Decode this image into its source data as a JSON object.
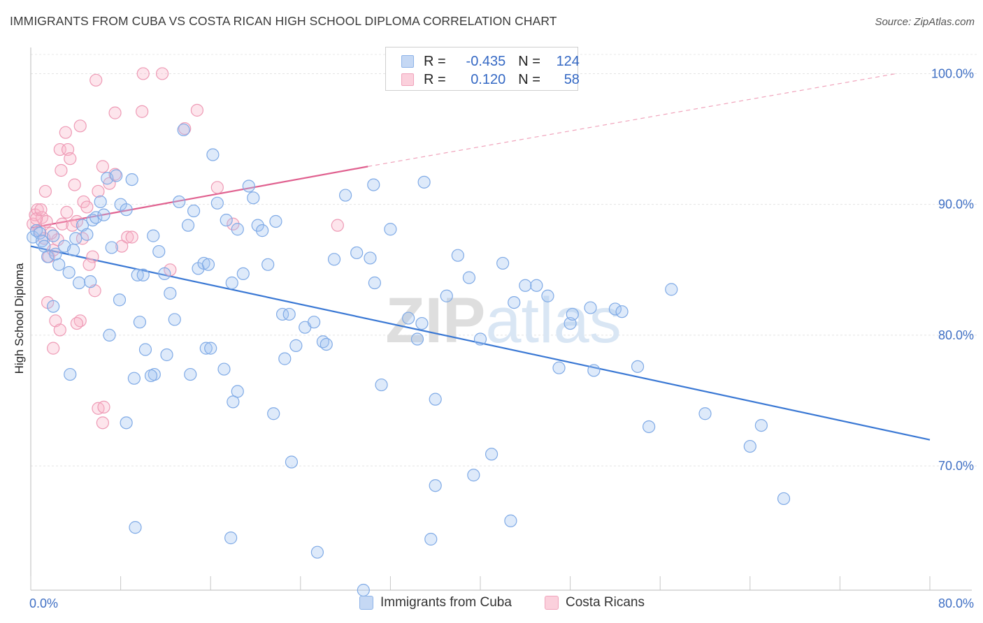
{
  "title": "IMMIGRANTS FROM CUBA VS COSTA RICAN HIGH SCHOOL DIPLOMA CORRELATION CHART",
  "source": "Source: ZipAtlas.com",
  "watermark": "ZIPatlas",
  "legend": {
    "rows": [
      {
        "r_label": "R =",
        "r_value": "-0.435",
        "n_label": "N =",
        "n_value": "124",
        "color": "#8db3e8",
        "fill": "#c5d8f4"
      },
      {
        "r_label": "R =",
        "r_value": "0.120",
        "n_label": "N =",
        "n_value": "58",
        "color": "#f0a3bb",
        "fill": "#fbd0dc"
      }
    ]
  },
  "bottom_legend": [
    {
      "label": "Immigrants from Cuba",
      "color": "#8db3e8",
      "fill": "#c5d8f4"
    },
    {
      "label": "Costa Ricans",
      "color": "#f0a3bb",
      "fill": "#fbd0dc"
    }
  ],
  "chart_data": {
    "type": "scatter",
    "title": "IMMIGRANTS FROM CUBA VS COSTA RICAN HIGH SCHOOL DIPLOMA CORRELATION CHART",
    "xlabel": "",
    "ylabel": "High School Diploma",
    "xlim": [
      0,
      80
    ],
    "ylim": [
      60.5,
      102
    ],
    "x_tick_labels": [
      "0.0%",
      "80.0%"
    ],
    "y_ticks": [
      70,
      80,
      90,
      100
    ],
    "y_tick_labels": [
      "70.0%",
      "80.0%",
      "90.0%",
      "100.0%"
    ],
    "grid": true,
    "legend_placement": "top-center",
    "colors": {
      "cuba": "#3a78d4",
      "costa": "#e0608f"
    },
    "series": [
      {
        "name": "Immigrants from Cuba",
        "trend": {
          "x0": 0,
          "y0": 86.8,
          "x1": 80,
          "y1": 72.0
        },
        "points": [
          [
            0.2,
            87.5
          ],
          [
            0.5,
            88.0
          ],
          [
            0.8,
            87.8
          ],
          [
            1.0,
            87.2
          ],
          [
            1.2,
            86.8
          ],
          [
            1.5,
            86.0
          ],
          [
            2.0,
            87.6
          ],
          [
            2.5,
            85.4
          ],
          [
            3.0,
            86.8
          ],
          [
            3.4,
            84.8
          ],
          [
            3.8,
            86.5
          ],
          [
            4.0,
            87.4
          ],
          [
            4.3,
            84.0
          ],
          [
            4.6,
            88.4
          ],
          [
            5.0,
            87.7
          ],
          [
            5.5,
            88.8
          ],
          [
            5.8,
            89.0
          ],
          [
            6.2,
            90.2
          ],
          [
            6.8,
            92.0
          ],
          [
            7.2,
            86.7
          ],
          [
            7.6,
            92.2
          ],
          [
            8.0,
            90.0
          ],
          [
            8.5,
            89.6
          ],
          [
            9.0,
            91.9
          ],
          [
            9.5,
            84.6
          ],
          [
            10.0,
            84.6
          ],
          [
            2.0,
            82.2
          ],
          [
            7.9,
            82.7
          ],
          [
            10.9,
            87.6
          ],
          [
            11.4,
            86.4
          ],
          [
            11.9,
            84.7
          ],
          [
            12.4,
            83.2
          ],
          [
            12.8,
            81.2
          ],
          [
            13.2,
            90.2
          ],
          [
            13.6,
            95.7
          ],
          [
            14.0,
            88.4
          ],
          [
            14.5,
            89.5
          ],
          [
            14.9,
            85.1
          ],
          [
            15.4,
            85.5
          ],
          [
            15.8,
            85.4
          ],
          [
            16.2,
            93.8
          ],
          [
            16.6,
            90.1
          ],
          [
            17.4,
            88.8
          ],
          [
            17.9,
            84.0
          ],
          [
            18.4,
            88.1
          ],
          [
            18.9,
            84.7
          ],
          [
            19.4,
            91.4
          ],
          [
            19.8,
            90.5
          ],
          [
            20.2,
            88.4
          ],
          [
            20.6,
            88.0
          ],
          [
            21.1,
            85.4
          ],
          [
            21.8,
            88.7
          ],
          [
            22.4,
            81.6
          ],
          [
            23.0,
            81.6
          ],
          [
            23.6,
            79.2
          ],
          [
            24.4,
            80.6
          ],
          [
            25.2,
            81.0
          ],
          [
            26.0,
            79.5
          ],
          [
            27.0,
            85.8
          ],
          [
            28.0,
            90.7
          ],
          [
            29.0,
            86.3
          ],
          [
            30.2,
            85.9
          ],
          [
            30.5,
            91.5
          ],
          [
            30.6,
            84.0
          ],
          [
            31.2,
            76.2
          ],
          [
            32.0,
            88.1
          ],
          [
            33.6,
            81.3
          ],
          [
            34.4,
            79.7
          ],
          [
            34.8,
            80.9
          ],
          [
            35.0,
            91.7
          ],
          [
            36.0,
            75.1
          ],
          [
            37.0,
            83.0
          ],
          [
            38.0,
            86.1
          ],
          [
            39.0,
            84.4
          ],
          [
            40.0,
            79.7
          ],
          [
            41.0,
            70.9
          ],
          [
            42.0,
            85.5
          ],
          [
            43.0,
            82.5
          ],
          [
            44.0,
            83.8
          ],
          [
            45.0,
            83.8
          ],
          [
            46.0,
            83.0
          ],
          [
            47.0,
            77.5
          ],
          [
            48.0,
            80.9
          ],
          [
            48.2,
            81.6
          ],
          [
            49.8,
            82.1
          ],
          [
            50.1,
            77.3
          ],
          [
            52.0,
            82.0
          ],
          [
            52.6,
            81.8
          ],
          [
            54.0,
            77.6
          ],
          [
            55.0,
            73.0
          ],
          [
            57.0,
            83.5
          ],
          [
            60.0,
            74.0
          ],
          [
            64.0,
            71.5
          ],
          [
            65.0,
            73.1
          ],
          [
            67.0,
            67.5
          ],
          [
            3.5,
            77.0
          ],
          [
            7.0,
            80.0
          ],
          [
            9.7,
            81.0
          ],
          [
            10.2,
            78.9
          ],
          [
            11.0,
            77.0
          ],
          [
            12.1,
            78.5
          ],
          [
            14.2,
            77.0
          ],
          [
            15.6,
            79.0
          ],
          [
            16.0,
            79.0
          ],
          [
            17.2,
            77.4
          ],
          [
            18.4,
            75.7
          ],
          [
            8.5,
            73.3
          ],
          [
            9.2,
            76.7
          ],
          [
            10.7,
            76.9
          ],
          [
            22.6,
            78.2
          ],
          [
            26.3,
            79.3
          ],
          [
            23.2,
            70.3
          ],
          [
            35.6,
            64.4
          ],
          [
            36.0,
            68.5
          ],
          [
            39.4,
            69.3
          ],
          [
            42.7,
            65.8
          ],
          [
            9.3,
            65.3
          ],
          [
            17.8,
            64.5
          ],
          [
            25.5,
            63.4
          ],
          [
            29.6,
            60.5
          ],
          [
            18.0,
            74.9
          ],
          [
            21.6,
            74.0
          ],
          [
            2.2,
            86.2
          ],
          [
            5.3,
            84.1
          ],
          [
            6.5,
            89.2
          ]
        ]
      },
      {
        "name": "Costa Ricans",
        "trend": {
          "x0": 0,
          "y0": 88.2,
          "x1": 30,
          "y1": 92.9,
          "dash_to": {
            "x": 77,
            "y": 100
          }
        },
        "points": [
          [
            0.2,
            88.5
          ],
          [
            0.4,
            89.2
          ],
          [
            0.6,
            89.6
          ],
          [
            0.8,
            88.0
          ],
          [
            1.0,
            89.0
          ],
          [
            1.2,
            87.4
          ],
          [
            1.4,
            88.7
          ],
          [
            1.6,
            86.0
          ],
          [
            2.0,
            86.5
          ],
          [
            2.4,
            87.3
          ],
          [
            2.8,
            88.5
          ],
          [
            3.2,
            89.4
          ],
          [
            0.5,
            88.9
          ],
          [
            0.9,
            89.6
          ],
          [
            1.3,
            91.0
          ],
          [
            2.6,
            94.2
          ],
          [
            2.7,
            92.6
          ],
          [
            3.3,
            94.2
          ],
          [
            3.5,
            93.5
          ],
          [
            3.9,
            91.5
          ],
          [
            4.4,
            96.0
          ],
          [
            4.7,
            90.2
          ],
          [
            5.0,
            89.8
          ],
          [
            5.5,
            86.0
          ],
          [
            6.0,
            91.0
          ],
          [
            6.4,
            92.9
          ],
          [
            7.0,
            91.6
          ],
          [
            7.5,
            92.3
          ],
          [
            8.1,
            86.8
          ],
          [
            8.6,
            87.5
          ],
          [
            9.0,
            87.5
          ],
          [
            5.8,
            99.5
          ],
          [
            7.5,
            97.0
          ],
          [
            9.9,
            97.1
          ],
          [
            10.0,
            100.0
          ],
          [
            11.7,
            100.0
          ],
          [
            13.7,
            95.8
          ],
          [
            14.8,
            97.2
          ],
          [
            16.6,
            91.3
          ],
          [
            18.0,
            88.5
          ],
          [
            27.3,
            88.4
          ],
          [
            3.1,
            95.5
          ],
          [
            4.1,
            88.7
          ],
          [
            4.6,
            87.4
          ],
          [
            5.2,
            85.4
          ],
          [
            5.7,
            83.4
          ],
          [
            1.5,
            82.5
          ],
          [
            2.2,
            81.1
          ],
          [
            2.6,
            80.4
          ],
          [
            4.4,
            81.1
          ],
          [
            4.1,
            80.9
          ],
          [
            2.0,
            79.0
          ],
          [
            6.0,
            74.4
          ],
          [
            6.5,
            74.5
          ],
          [
            6.4,
            73.3
          ],
          [
            12.4,
            85.0
          ],
          [
            3.7,
            88.4
          ],
          [
            1.8,
            87.8
          ]
        ]
      }
    ]
  }
}
